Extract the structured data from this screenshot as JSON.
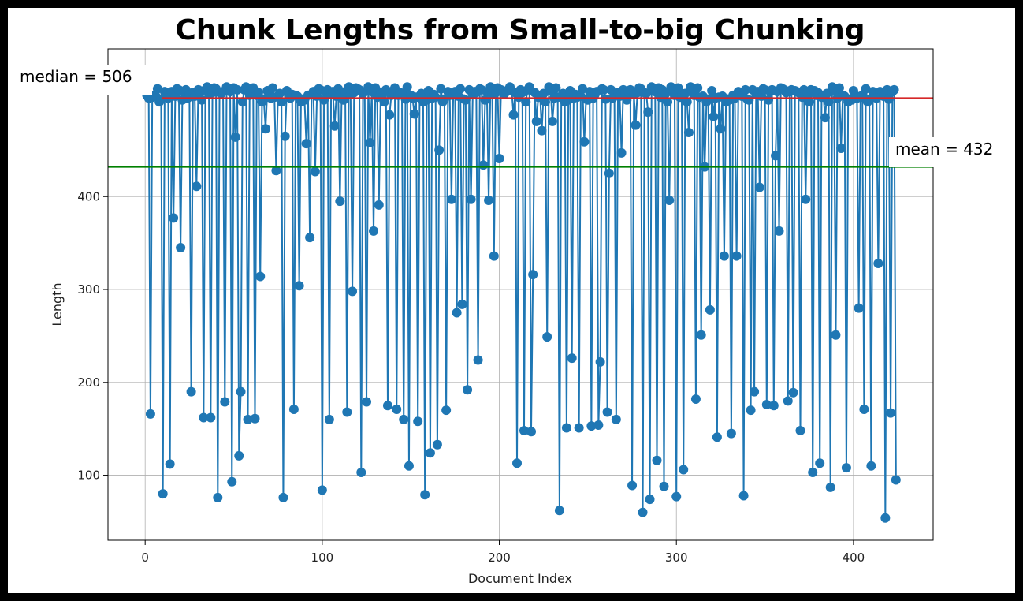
{
  "chart_data": {
    "type": "line",
    "title": "Chunk Lengths from Small-to-big Chunking",
    "xlabel": "Document Index",
    "ylabel": "Length",
    "xlim": [
      -21,
      445
    ],
    "ylim": [
      30,
      559
    ],
    "xticks": [
      0,
      100,
      200,
      300,
      400
    ],
    "yticks": [
      100,
      200,
      300,
      400
    ],
    "grid": true,
    "colors": {
      "series": "#1f77b4",
      "median": "#d62728",
      "mean": "#008000"
    },
    "annotations": {
      "median": {
        "value": 506,
        "label": "median = 506"
      },
      "mean": {
        "value": 432,
        "label": "mean = 432"
      }
    },
    "low_points": [
      [
        3,
        166
      ],
      [
        10,
        80
      ],
      [
        14,
        112
      ],
      [
        16,
        377
      ],
      [
        20,
        345
      ],
      [
        26,
        190
      ],
      [
        29,
        411
      ],
      [
        33,
        162
      ],
      [
        37,
        162
      ],
      [
        41,
        76
      ],
      [
        45,
        179
      ],
      [
        49,
        93
      ],
      [
        51,
        464
      ],
      [
        53,
        121
      ],
      [
        54,
        190
      ],
      [
        58,
        160
      ],
      [
        62,
        161
      ],
      [
        65,
        314
      ],
      [
        68,
        473
      ],
      [
        74,
        428
      ],
      [
        78,
        76
      ],
      [
        79,
        465
      ],
      [
        84,
        171
      ],
      [
        87,
        304
      ],
      [
        91,
        457
      ],
      [
        93,
        356
      ],
      [
        96,
        427
      ],
      [
        100,
        84
      ],
      [
        104,
        160
      ],
      [
        107,
        476
      ],
      [
        110,
        395
      ],
      [
        114,
        168
      ],
      [
        117,
        298
      ],
      [
        122,
        103
      ],
      [
        125,
        179
      ],
      [
        127,
        458
      ],
      [
        129,
        363
      ],
      [
        132,
        391
      ],
      [
        137,
        175
      ],
      [
        138,
        488
      ],
      [
        142,
        171
      ],
      [
        146,
        160
      ],
      [
        149,
        110
      ],
      [
        152,
        489
      ],
      [
        154,
        158
      ],
      [
        158,
        79
      ],
      [
        161,
        124
      ],
      [
        165,
        133
      ],
      [
        166,
        450
      ],
      [
        170,
        170
      ],
      [
        173,
        397
      ],
      [
        176,
        275
      ],
      [
        179,
        284
      ],
      [
        182,
        192
      ],
      [
        184,
        397
      ],
      [
        188,
        224
      ],
      [
        191,
        434
      ],
      [
        194,
        396
      ],
      [
        197,
        336
      ],
      [
        200,
        441
      ],
      [
        208,
        488
      ],
      [
        210,
        113
      ],
      [
        214,
        148
      ],
      [
        218,
        147
      ],
      [
        219,
        316
      ],
      [
        221,
        481
      ],
      [
        224,
        471
      ],
      [
        227,
        249
      ],
      [
        230,
        481
      ],
      [
        234,
        62
      ],
      [
        238,
        151
      ],
      [
        241,
        226
      ],
      [
        245,
        151
      ],
      [
        248,
        459
      ],
      [
        252,
        153
      ],
      [
        256,
        154
      ],
      [
        257,
        222
      ],
      [
        261,
        168
      ],
      [
        262,
        425
      ],
      [
        266,
        160
      ],
      [
        269,
        447
      ],
      [
        275,
        89
      ],
      [
        277,
        477
      ],
      [
        281,
        60
      ],
      [
        284,
        491
      ],
      [
        285,
        74
      ],
      [
        289,
        116
      ],
      [
        293,
        88
      ],
      [
        296,
        396
      ],
      [
        300,
        77
      ],
      [
        304,
        106
      ],
      [
        307,
        469
      ],
      [
        311,
        182
      ],
      [
        314,
        251
      ],
      [
        316,
        432
      ],
      [
        319,
        278
      ],
      [
        321,
        486
      ],
      [
        323,
        141
      ],
      [
        325,
        473
      ],
      [
        327,
        336
      ],
      [
        331,
        145
      ],
      [
        334,
        336
      ],
      [
        338,
        78
      ],
      [
        342,
        170
      ],
      [
        344,
        190
      ],
      [
        347,
        410
      ],
      [
        351,
        176
      ],
      [
        355,
        175
      ],
      [
        356,
        444
      ],
      [
        358,
        363
      ],
      [
        363,
        180
      ],
      [
        366,
        189
      ],
      [
        370,
        148
      ],
      [
        373,
        397
      ],
      [
        377,
        103
      ],
      [
        381,
        113
      ],
      [
        384,
        485
      ],
      [
        387,
        87
      ],
      [
        390,
        251
      ],
      [
        393,
        452
      ],
      [
        396,
        108
      ],
      [
        403,
        280
      ],
      [
        406,
        171
      ],
      [
        410,
        110
      ],
      [
        414,
        328
      ],
      [
        418,
        54
      ],
      [
        421,
        167
      ],
      [
        424,
        95
      ]
    ]
  }
}
